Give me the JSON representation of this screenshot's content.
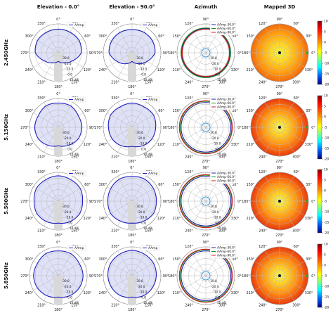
{
  "figure": {
    "column_titles": [
      "Elevation - 0.0°",
      "Elevation - 90.0°",
      "Azimuth",
      "Mapped 3D"
    ],
    "row_labels": [
      "2.450GHz",
      "5.150GHz",
      "5.500GHz",
      "5.850GHz"
    ],
    "polar_angle_labels": [
      "0°",
      "30°",
      "60°",
      "90°",
      "120°",
      "150°",
      "180°",
      "210°",
      "240°",
      "270°",
      "300°",
      "330°"
    ],
    "radial_tick_labels": [
      "-30.0",
      "-20.0",
      "-10.0",
      "0.0",
      "10 dBi"
    ],
    "azimuth_angle_labels": [
      "90°",
      "60°",
      "30°",
      "0°",
      "330°",
      "300°",
      "270°",
      "240°",
      "210°",
      "180°",
      "150°",
      "120°"
    ],
    "colorbar_ticks": [
      "10",
      "5",
      "0",
      "-5",
      "-10",
      "-15",
      "-20"
    ],
    "colors": {
      "elevation_line": "#1f1fbf",
      "elevation_fill": "#dfe1f7",
      "az_line_30": "#1f1f9f",
      "az_line_60": "#1a8a1a",
      "az_line_90": "#cc1f1f",
      "inner_circle": "#3399dd",
      "grid": "#b8b8b8",
      "mask": "#d8d8d8"
    }
  },
  "chart_data": [
    {
      "type": "line",
      "polar": true,
      "title": "Elevation - 0.0°",
      "units": "dBi",
      "rlim": [
        -40,
        10
      ],
      "theta_deg": [
        0,
        30,
        60,
        90,
        120,
        150,
        180,
        210,
        240,
        270,
        300,
        330
      ],
      "series": [
        {
          "name": "AAmp",
          "row": "2.450GHz",
          "values": [
            1,
            1,
            2,
            0,
            -12,
            -20,
            -25,
            -20,
            -12,
            0,
            2,
            1
          ]
        },
        {
          "name": "AAmp",
          "row": "5.150GHz",
          "values": [
            2,
            3,
            0,
            1,
            0,
            -4,
            -8,
            -4,
            0,
            1,
            0,
            3
          ]
        },
        {
          "name": "AAmp",
          "row": "5.500GHz",
          "values": [
            4,
            3,
            4,
            2,
            3,
            1,
            -2,
            1,
            3,
            2,
            4,
            3
          ]
        },
        {
          "name": "AAmp",
          "row": "5.850GHz",
          "values": [
            3,
            4,
            2,
            3,
            2,
            0,
            -3,
            0,
            2,
            3,
            2,
            4
          ]
        }
      ]
    },
    {
      "type": "line",
      "polar": true,
      "title": "Elevation - 90.0°",
      "units": "dBi",
      "rlim": [
        -40,
        10
      ],
      "theta_deg": [
        0,
        30,
        60,
        90,
        120,
        150,
        180,
        210,
        240,
        270,
        300,
        330
      ],
      "series": [
        {
          "name": "AAmp",
          "row": "2.450GHz",
          "values": [
            0,
            1,
            1,
            0,
            -10,
            -18,
            -25,
            -18,
            -10,
            0,
            1,
            1
          ]
        },
        {
          "name": "AAmp",
          "row": "5.150GHz",
          "values": [
            2,
            1,
            3,
            1,
            0,
            -3,
            -7,
            -3,
            0,
            1,
            3,
            1
          ]
        },
        {
          "name": "AAmp",
          "row": "5.500GHz",
          "values": [
            3,
            4,
            3,
            2,
            3,
            0,
            -2,
            0,
            3,
            2,
            3,
            4
          ]
        },
        {
          "name": "AAmp",
          "row": "5.850GHz",
          "values": [
            4,
            3,
            3,
            2,
            1,
            0,
            -3,
            0,
            1,
            2,
            3,
            3
          ]
        }
      ]
    },
    {
      "type": "line",
      "polar": true,
      "title": "Azimuth",
      "units": "dBi",
      "rlim": [
        -40,
        10
      ],
      "series": [
        {
          "name": "AAmp-30.0°",
          "row": "2.450GHz",
          "value": 2
        },
        {
          "name": "AAmp-60.0°",
          "row": "2.450GHz",
          "value": 3
        },
        {
          "name": "AAmp-90.0°",
          "row": "2.450GHz",
          "value": 1
        },
        {
          "name": "AAmp-30.0°",
          "row": "5.150GHz",
          "value": 3
        },
        {
          "name": "AAmp-60.0°",
          "row": "5.150GHz",
          "value": 5
        },
        {
          "name": "AAmp-90.0°",
          "row": "5.150GHz",
          "value": 6
        },
        {
          "name": "AAmp-30.0°",
          "row": "5.500GHz",
          "value": 3
        },
        {
          "name": "AAmp-60.0°",
          "row": "5.500GHz",
          "value": 5
        },
        {
          "name": "AAmp-90.0°",
          "row": "5.500GHz",
          "value": 6
        },
        {
          "name": "AAmp-30.0°",
          "row": "5.850GHz",
          "value": 3
        },
        {
          "name": "AAmp-60.0°",
          "row": "5.850GHz",
          "value": 5
        },
        {
          "name": "AAmp-90.0°",
          "row": "5.850GHz",
          "value": 6
        }
      ]
    },
    {
      "type": "heatmap",
      "polar": true,
      "title": "Mapped 3D",
      "colorbar_range": [
        -20,
        10
      ],
      "colormap": "jet",
      "rows": [
        "2.450GHz",
        "5.150GHz",
        "5.500GHz",
        "5.850GHz"
      ]
    }
  ]
}
